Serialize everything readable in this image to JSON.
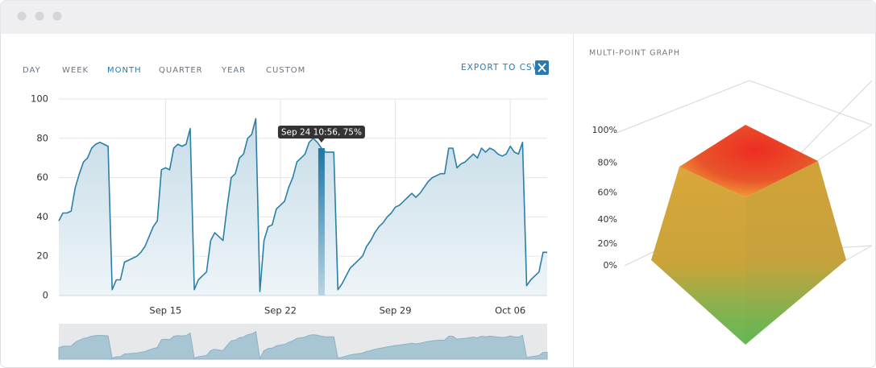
{
  "tabs": [
    "DAY",
    "WEEK",
    "MONTH",
    "QUARTER",
    "YEAR",
    "CUSTOM"
  ],
  "active_tab": 2,
  "export_label": "EXPORT TO CSV",
  "chart_data": [
    {
      "type": "line",
      "values": [
        38,
        42,
        42,
        43,
        55,
        62,
        68,
        70,
        75,
        77,
        78,
        77,
        76,
        3,
        8,
        8,
        17,
        18,
        19,
        20,
        22,
        25,
        30,
        35,
        38,
        64,
        65,
        64,
        75,
        77,
        76,
        77,
        85,
        3,
        8,
        10,
        12,
        28,
        32,
        30,
        28,
        45,
        60,
        62,
        70,
        72,
        80,
        82,
        90,
        2,
        28,
        35,
        36,
        44,
        46,
        48,
        55,
        60,
        68,
        70,
        72,
        78,
        80,
        78,
        75,
        73,
        73,
        73,
        3,
        6,
        10,
        14,
        16,
        18,
        20,
        25,
        28,
        32,
        35,
        37,
        40,
        42,
        45,
        46,
        48,
        50,
        52,
        50,
        52,
        55,
        58,
        60,
        61,
        62,
        62,
        75,
        75,
        65,
        67,
        68,
        70,
        72,
        70,
        75,
        73,
        75,
        74,
        72,
        71,
        72,
        76,
        73,
        72,
        78,
        5,
        8,
        10,
        12,
        22,
        22
      ],
      "color": "#2a7fa6",
      "xlim": [
        0,
        119
      ],
      "xticks": [
        {
          "value": 26,
          "label": "Sep 15"
        },
        {
          "value": 54,
          "label": "Sep 22"
        },
        {
          "value": 82,
          "label": "Sep 29"
        },
        {
          "value": 110,
          "label": "Oct 06"
        }
      ],
      "ylim": [
        0,
        100
      ],
      "yticks": [
        0,
        20,
        40,
        60,
        80,
        100
      ],
      "grid": true,
      "annotation": {
        "text": "Sep 24 10:56, 75%",
        "x": 64
      }
    },
    {
      "type": "surface3d",
      "title": "MULTI-POINT GRAPH",
      "ylim": [
        0,
        100
      ],
      "yticks": [
        {
          "value": 0,
          "label": "0%"
        },
        {
          "value": 20,
          "label": "20%"
        },
        {
          "value": 40,
          "label": "40%"
        },
        {
          "value": 60,
          "label": "60%"
        },
        {
          "value": 80,
          "label": "80%"
        },
        {
          "value": 100,
          "label": "100%"
        }
      ]
    }
  ]
}
